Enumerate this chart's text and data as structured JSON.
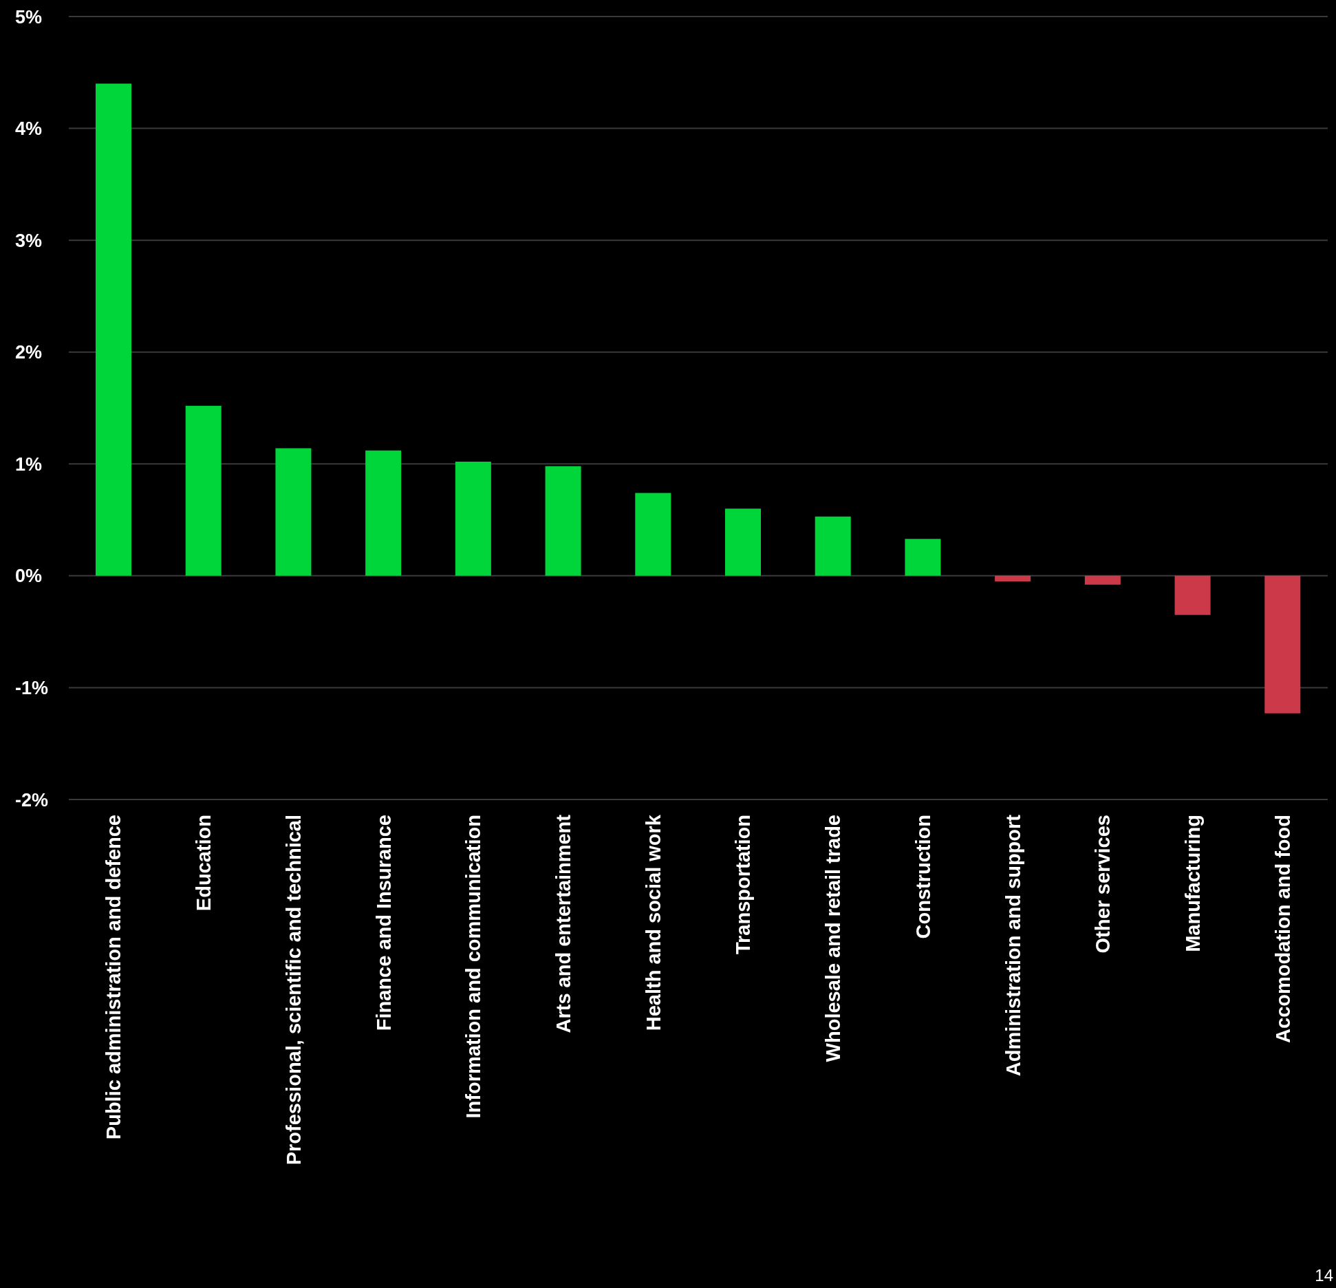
{
  "chart_data": {
    "type": "bar",
    "categories": [
      "Public administration and defence",
      "Education",
      "Professional, scientific and technical",
      "Finance and Insurance",
      "Information and communication",
      "Arts and entertainment",
      "Health and social work",
      "Transportation",
      "Wholesale and retail trade",
      "Construction",
      "Administration and support",
      "Other services",
      "Manufacturing",
      "Accomodation and food"
    ],
    "values": [
      4.4,
      1.52,
      1.14,
      1.12,
      1.02,
      0.98,
      0.74,
      0.6,
      0.53,
      0.33,
      -0.05,
      -0.08,
      -0.35,
      -1.23
    ],
    "colors": [
      "#00d639",
      "#00d639",
      "#00d639",
      "#00d639",
      "#00d639",
      "#00d639",
      "#00d639",
      "#00d639",
      "#00d639",
      "#00d639",
      "#cc3a4a",
      "#cc3a4a",
      "#cc3a4a",
      "#cc3a4a"
    ],
    "ylim": [
      -2,
      5
    ],
    "yticks": [
      {
        "value": -2,
        "label": "-2%"
      },
      {
        "value": -1,
        "label": "-1%"
      },
      {
        "value": 0,
        "label": "0%"
      },
      {
        "value": 1,
        "label": "1%"
      },
      {
        "value": 2,
        "label": "2%"
      },
      {
        "value": 3,
        "label": "3%"
      },
      {
        "value": 4,
        "label": "4%"
      },
      {
        "value": 5,
        "label": "5%"
      }
    ],
    "grid": "y",
    "annotations": [
      "14"
    ]
  }
}
